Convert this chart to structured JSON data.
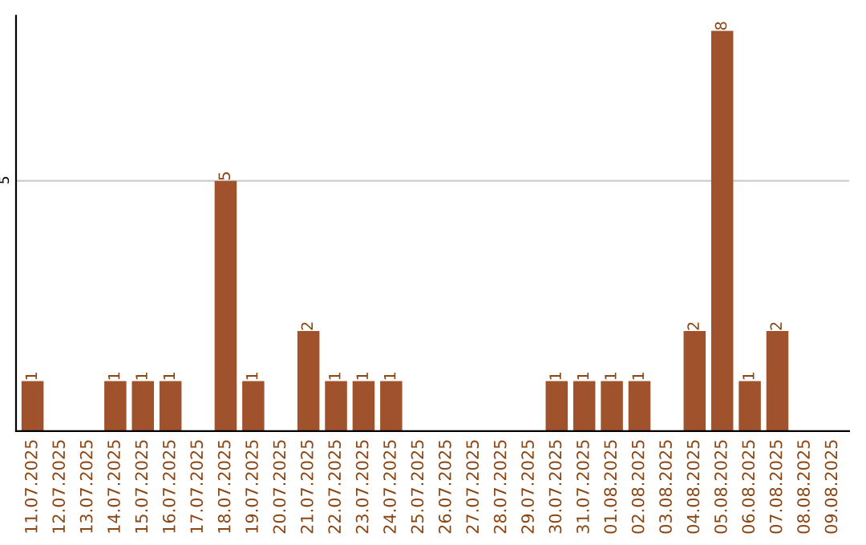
{
  "chart_data": {
    "type": "bar",
    "categories": [
      "11.07.2025",
      "12.07.2025",
      "13.07.2025",
      "14.07.2025",
      "15.07.2025",
      "16.07.2025",
      "17.07.2025",
      "18.07.2025",
      "19.07.2025",
      "20.07.2025",
      "21.07.2025",
      "22.07.2025",
      "23.07.2025",
      "24.07.2025",
      "25.07.2025",
      "26.07.2025",
      "27.07.2025",
      "28.07.2025",
      "29.07.2025",
      "30.07.2025",
      "31.07.2025",
      "01.08.2025",
      "02.08.2025",
      "03.08.2025",
      "04.08.2025",
      "05.08.2025",
      "06.08.2025",
      "07.08.2025",
      "08.08.2025",
      "09.08.2025"
    ],
    "values": [
      1,
      0,
      0,
      1,
      1,
      1,
      0,
      5,
      1,
      0,
      2,
      1,
      1,
      1,
      0,
      0,
      0,
      0,
      0,
      1,
      1,
      1,
      1,
      0,
      2,
      8,
      1,
      2,
      0,
      0
    ],
    "value_labels": [
      "1",
      null,
      null,
      "1",
      "1",
      "1",
      null,
      "5",
      "1",
      null,
      "2",
      "1",
      "1",
      "1",
      null,
      null,
      null,
      null,
      null,
      "1",
      "1",
      "1",
      "1",
      null,
      "2",
      "8",
      "1",
      "2",
      null,
      null
    ],
    "color": "#a0522d",
    "ylim": [
      0,
      8.3
    ],
    "yticks": [
      5
    ],
    "grid": "y"
  }
}
